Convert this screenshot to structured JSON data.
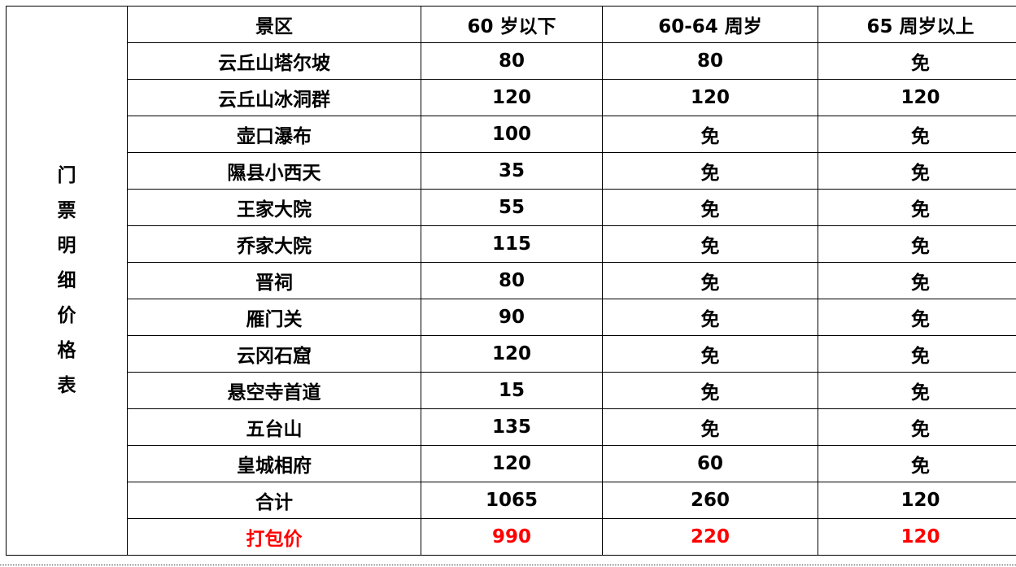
{
  "side_label": [
    "门",
    "票",
    "明",
    "细",
    "价",
    "格",
    "表"
  ],
  "headers": [
    "景区",
    "60 岁以下",
    "60-64 周岁",
    "65 周岁以上"
  ],
  "rows": [
    [
      "云丘山塔尔坡",
      "80",
      "80",
      "免"
    ],
    [
      "云丘山冰洞群",
      "120",
      "120",
      "120"
    ],
    [
      "壶口瀑布",
      "100",
      "免",
      "免"
    ],
    [
      "隰县小西天",
      "35",
      "免",
      "免"
    ],
    [
      "王家大院",
      "55",
      "免",
      "免"
    ],
    [
      "乔家大院",
      "115",
      "免",
      "免"
    ],
    [
      "晋祠",
      "80",
      "免",
      "免"
    ],
    [
      "雁门关",
      "90",
      "免",
      "免"
    ],
    [
      "云冈石窟",
      "120",
      "免",
      "免"
    ],
    [
      "悬空寺首道",
      "15",
      "免",
      "免"
    ],
    [
      "五台山",
      "135",
      "免",
      "免"
    ],
    [
      "皇城相府",
      "120",
      "60",
      "免"
    ]
  ],
  "total": [
    "合计",
    "1065",
    "260",
    "120"
  ],
  "package": [
    "打包价",
    "990",
    "220",
    "120"
  ],
  "colors": {
    "package_text": "#ff0000",
    "text": "#000000"
  }
}
